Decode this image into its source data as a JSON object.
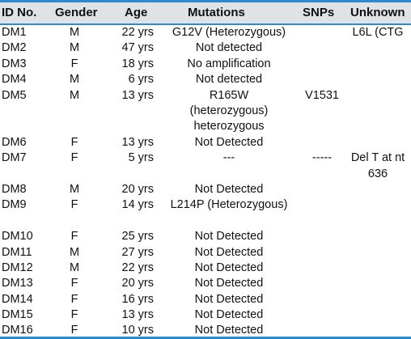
{
  "table": {
    "headers": {
      "id": "ID No.",
      "gender": "Gender",
      "age": "Age",
      "mutations": "Mutations",
      "snps": "SNPs",
      "unknown": "Unknown"
    },
    "rows": [
      {
        "id": "DM1",
        "gender": "M",
        "age": "22 yrs",
        "mutations": "G12V (Heterozygous)",
        "snps": "",
        "unknown": "L6L (CTG"
      },
      {
        "id": "DM2",
        "gender": "M",
        "age": "47 yrs",
        "mutations": "Not detected",
        "snps": "",
        "unknown": ""
      },
      {
        "id": "DM3",
        "gender": "F",
        "age": "18 yrs",
        "mutations": "No amplification",
        "snps": "",
        "unknown": ""
      },
      {
        "id": "DM4",
        "gender": "M",
        "age": "6 yrs",
        "mutations": "Not detected",
        "snps": "",
        "unknown": ""
      },
      {
        "id": "DM5",
        "gender": "M",
        "age": "13 yrs",
        "mutations": "R165W (heterozygous) heterozygous",
        "snps": "V1531",
        "unknown": ""
      },
      {
        "id": "DM6",
        "gender": "F",
        "age": "13 yrs",
        "mutations": "Not Detected",
        "snps": "",
        "unknown": ""
      },
      {
        "id": "DM7",
        "gender": "F",
        "age": "5 yrs",
        "mutations": "---",
        "snps": "-----",
        "unknown": "Del T at nt 636"
      },
      {
        "id": "DM8",
        "gender": "M",
        "age": "20 yrs",
        "mutations": "Not Detected",
        "snps": "",
        "unknown": ""
      },
      {
        "id": "DM9",
        "gender": "F",
        "age": "14 yrs",
        "mutations": "L214P (Heterozygous)",
        "snps": "",
        "unknown": ""
      },
      {
        "id": "DM10",
        "gender": "F",
        "age": "25 yrs",
        "mutations": "Not Detected",
        "snps": "",
        "unknown": ""
      },
      {
        "id": "DM11",
        "gender": "M",
        "age": "27 yrs",
        "mutations": "Not Detected",
        "snps": "",
        "unknown": ""
      },
      {
        "id": "DM12",
        "gender": "M",
        "age": "22 yrs",
        "mutations": "Not Detected",
        "snps": "",
        "unknown": ""
      },
      {
        "id": "DM13",
        "gender": "F",
        "age": "20 yrs",
        "mutations": "Not Detected",
        "snps": "",
        "unknown": ""
      },
      {
        "id": "DM14",
        "gender": "F",
        "age": "16 yrs",
        "mutations": "Not Detected",
        "snps": "",
        "unknown": ""
      },
      {
        "id": "DM15",
        "gender": "F",
        "age": "13 yrs",
        "mutations": "Not Detected",
        "snps": "",
        "unknown": ""
      },
      {
        "id": "DM16",
        "gender": "F",
        "age": "10 yrs",
        "mutations": "Not Detected",
        "snps": "",
        "unknown": ""
      }
    ]
  },
  "colors": {
    "rule": "#2a8bd2",
    "header_bg": "#dfe3e5"
  }
}
